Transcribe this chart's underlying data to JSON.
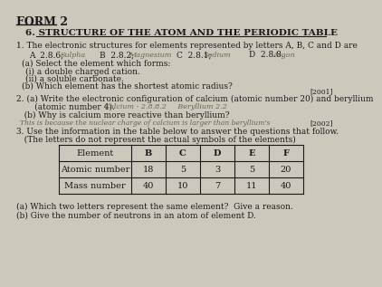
{
  "title_form": "FORM 2",
  "title_section": "6. STRUCTURE OF THE ATOM AND THE PERIODIC TABLE",
  "bg_color": "#cdc8bc",
  "text_color": "#1a1a1a",
  "handwritten_color": "#666655",
  "q1_line1": "1. The electronic structures for elements represented by letters A, B, C and D are",
  "q1_line2_printed": [
    "A  2.8.6;",
    "B  2.8.2;",
    "C  2.8.1;",
    "D  2.8.8."
  ],
  "q1_line2_hw": [
    "Sulpha",
    "Magnesium",
    "Sodium",
    "Argon"
  ],
  "q1_a": "(a) Select the element which forms:",
  "q1_ai": "(i) a double charged cation.",
  "q1_aii": "(ii) a soluble carbonate.",
  "q1_b": "(b) Which element has the shortest atomic radius?",
  "year2001": "[2001]",
  "q2_line1": "2. (a) Write the electronic configuration of calcium (atomic number 20) and beryllium",
  "q2_line2": "       (atomic number 4).",
  "q2_line2_hw": "Calcium - 2.8.8.2     Beryllium 2.2",
  "q2_b": "   (b) Why is calcium more reactive than beryllium?",
  "q2_b_hw": "This is because the nuclear charge of calcium is larger than beryllium's",
  "year2002": "[2002]",
  "q3_line1": "3. Use the information in the table below to answer the questions that follow.",
  "q3_line2": "   (The letters do not represent the actual symbols of the elements)",
  "table_headers": [
    "Element",
    "B",
    "C",
    "D",
    "E",
    "F"
  ],
  "table_row1": [
    "Atomic number",
    "18",
    "5",
    "3",
    "5",
    "20"
  ],
  "table_row2": [
    "Mass number",
    "40",
    "10",
    "7",
    "11",
    "40"
  ],
  "footer1": "(a) Which two letters represent the same element?  Give a reason.",
  "footer2": "(b) Give the number of neutrons in an atom of element D."
}
